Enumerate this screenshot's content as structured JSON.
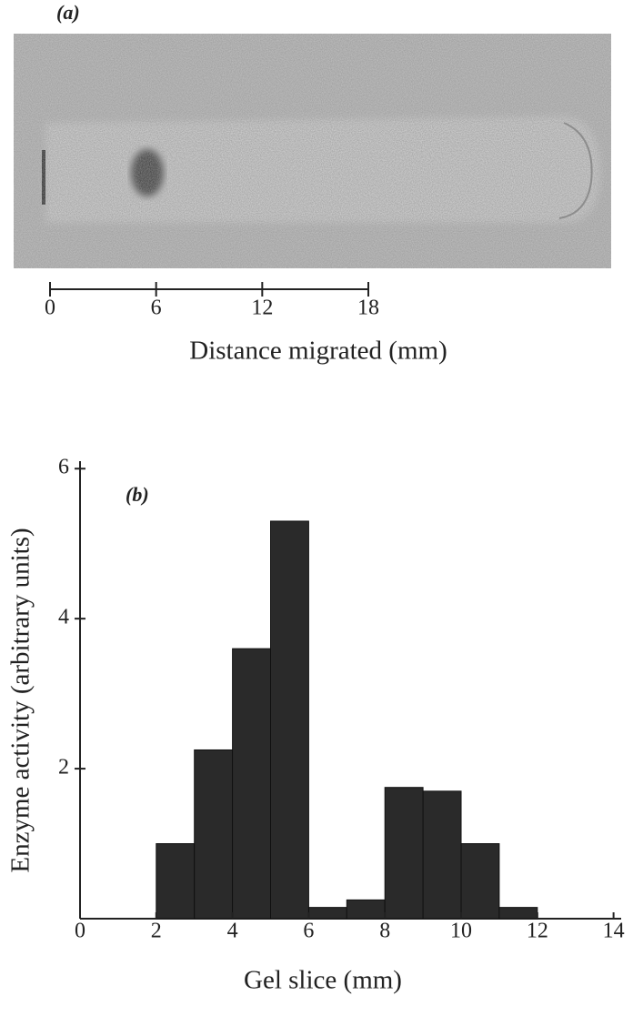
{
  "chart_data": [
    {
      "type": "image",
      "label": "(a)",
      "x_label": "Distance migrated (mm)",
      "xlim": [
        0,
        18
      ],
      "xticks": [
        0,
        6,
        12,
        18
      ]
    },
    {
      "type": "histogram",
      "label": "(b)",
      "x_label": "Gel slice (mm)",
      "y_label": "Enzyme activity (arbitrary units)",
      "bins": [
        2,
        3,
        4,
        5,
        6,
        7,
        8,
        9,
        10,
        11,
        12
      ],
      "values": [
        1.0,
        2.25,
        3.6,
        5.3,
        0.15,
        0.25,
        1.75,
        1.7,
        1.0,
        0.15
      ],
      "color": "#2a2a2a",
      "xlim": [
        0,
        14.2
      ],
      "xticks": [
        0,
        2,
        4,
        6,
        8,
        10,
        12,
        14
      ],
      "ylim": [
        0,
        6.1
      ],
      "yticks": [
        2,
        4,
        6
      ]
    }
  ]
}
